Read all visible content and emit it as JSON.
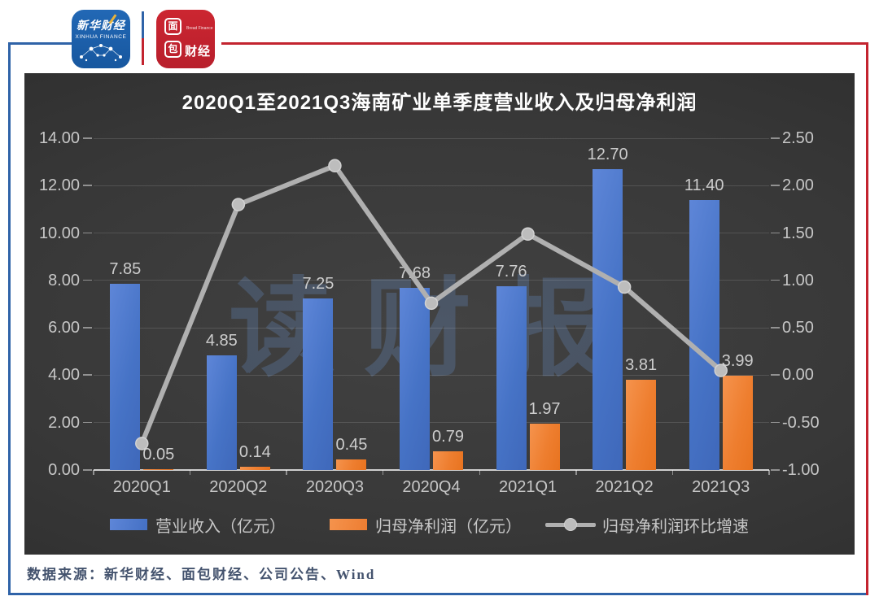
{
  "header": {
    "xinhua_logo": {
      "line1": "新华财经",
      "line2": "XINHUA FINANCE"
    },
    "bread_logo": {
      "char1": "面",
      "char2": "包",
      "rest": "财经",
      "sub": "Bread Finance"
    }
  },
  "chart_data": {
    "type": "bar",
    "title": "2020Q1至2021Q3海南矿业单季度营业收入及归母净利润",
    "categories": [
      "2020Q1",
      "2020Q2",
      "2020Q3",
      "2020Q4",
      "2021Q1",
      "2021Q2",
      "2021Q3"
    ],
    "series": [
      {
        "name": "营业收入（亿元）",
        "type": "bar",
        "axis": "left",
        "color": "#4472c4",
        "values": [
          7.85,
          4.85,
          7.25,
          7.68,
          7.76,
          12.7,
          11.4
        ],
        "labels": [
          "7.85",
          "4.85",
          "7.25",
          "7.68",
          "7.76",
          "12.70",
          "11.40"
        ]
      },
      {
        "name": "归母净利润（亿元）",
        "type": "bar",
        "axis": "left",
        "color": "#ed7d31",
        "values": [
          0.05,
          0.14,
          0.45,
          0.79,
          1.97,
          3.81,
          3.99
        ],
        "labels": [
          "0.05",
          "0.14",
          "0.45",
          "0.79",
          "1.97",
          "3.81",
          "3.99"
        ]
      },
      {
        "name": "归母净利润环比增速",
        "type": "line",
        "axis": "right",
        "color": "#b0b0b0",
        "values": [
          -0.72,
          1.8,
          2.21,
          0.76,
          1.49,
          0.93,
          0.05
        ]
      }
    ],
    "left_axis": {
      "min": 0,
      "max": 14,
      "step": 2,
      "labels": [
        "14.00",
        "12.00",
        "10.00",
        "8.00",
        "6.00",
        "4.00",
        "2.00",
        "0.00"
      ]
    },
    "right_axis": {
      "min": -1,
      "max": 2.5,
      "step": 0.5,
      "labels": [
        "2.50",
        "2.00",
        "1.50",
        "1.00",
        "0.50",
        "0.00",
        "-0.50",
        "-1.00"
      ]
    },
    "grid": true,
    "legend_position": "bottom",
    "watermark": "读财报"
  },
  "footer": {
    "source": "数据来源：新华财经、面包财经、公司公告、Wind"
  }
}
